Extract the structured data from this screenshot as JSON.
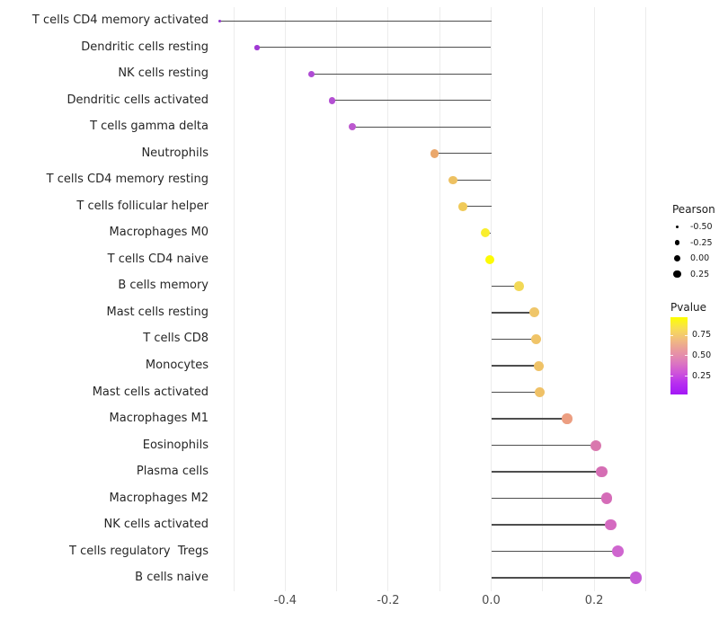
{
  "chart_data": {
    "type": "scatter",
    "subtype": "lollipop",
    "title": "",
    "xlabel": "",
    "ylabel": "",
    "xlim": [
      -0.57,
      0.33
    ],
    "grid": true,
    "grid_values": [
      -0.5,
      -0.4,
      -0.3,
      -0.2,
      -0.1,
      0.0,
      0.1,
      0.2,
      0.3
    ],
    "x_ticks": [
      {
        "label": "-0.4",
        "value": -0.4
      },
      {
        "label": "-0.2",
        "value": -0.2
      },
      {
        "label": "0.0",
        "value": 0.0
      },
      {
        "label": "0.2",
        "value": 0.2
      }
    ],
    "rows": [
      {
        "label": "T cells CD4 memory activated",
        "pearson": -0.527,
        "dot_color": "#9232cd",
        "dot_size": 3
      },
      {
        "label": "Dendritic cells resting",
        "pearson": -0.455,
        "dot_color": "#a039d4",
        "dot_size": 5.5
      },
      {
        "label": "NK cells resting",
        "pearson": -0.35,
        "dot_color": "#af4bd4",
        "dot_size": 7
      },
      {
        "label": "Dendritic cells activated",
        "pearson": -0.309,
        "dot_color": "#b450d3",
        "dot_size": 7.5
      },
      {
        "label": "T cells gamma delta",
        "pearson": -0.269,
        "dot_color": "#bc58cf",
        "dot_size": 8
      },
      {
        "label": "Neutrophils",
        "pearson": -0.11,
        "dot_color": "#eaa76b",
        "dot_size": 9.5
      },
      {
        "label": "T cells CD4 memory resting",
        "pearson": -0.074,
        "dot_color": "#edc162",
        "dot_size": 9.5
      },
      {
        "label": "T cells follicular helper",
        "pearson": -0.055,
        "dot_color": "#f0ca58",
        "dot_size": 9.5
      },
      {
        "label": "Macrophages M0",
        "pearson": -0.012,
        "dot_color": "#f9ee2e",
        "dot_size": 10
      },
      {
        "label": "T cells CD4 naive",
        "pearson": -0.002,
        "dot_color": "#fdfb05",
        "dot_size": 10
      },
      {
        "label": "B cells memory",
        "pearson": 0.054,
        "dot_color": "#f2d856",
        "dot_size": 10.5
      },
      {
        "label": "Mast cells resting",
        "pearson": 0.084,
        "dot_color": "#efc66a",
        "dot_size": 11
      },
      {
        "label": "T cells CD8",
        "pearson": 0.088,
        "dot_color": "#f0c468",
        "dot_size": 11
      },
      {
        "label": "Monocytes",
        "pearson": 0.093,
        "dot_color": "#efc267",
        "dot_size": 11
      },
      {
        "label": "Mast cells activated",
        "pearson": 0.095,
        "dot_color": "#efc167",
        "dot_size": 11
      },
      {
        "label": "Macrophages M1",
        "pearson": 0.147,
        "dot_color": "#ec9e81",
        "dot_size": 11.5
      },
      {
        "label": "Eosinophils",
        "pearson": 0.203,
        "dot_color": "#d978ae",
        "dot_size": 12
      },
      {
        "label": "Plasma cells",
        "pearson": 0.215,
        "dot_color": "#d56eb4",
        "dot_size": 12.5
      },
      {
        "label": "Macrophages M2",
        "pearson": 0.224,
        "dot_color": "#d56cb8",
        "dot_size": 12.5
      },
      {
        "label": "NK cells activated",
        "pearson": 0.232,
        "dot_color": "#d46ac0",
        "dot_size": 12.5
      },
      {
        "label": "T cells regulatory  Tregs",
        "pearson": 0.246,
        "dot_color": "#cf66cf",
        "dot_size": 13
      },
      {
        "label": "B cells naive",
        "pearson": 0.281,
        "dot_color": "#c55cd6",
        "dot_size": 13.5
      }
    ],
    "legend_size": {
      "title": "Pearson",
      "entries": [
        {
          "label": "-0.50",
          "dot_size": 3
        },
        {
          "label": "-0.25",
          "dot_size": 5.5
        },
        {
          "label": "0.00",
          "dot_size": 7.3
        },
        {
          "label": "0.25",
          "dot_size": 8.3
        }
      ]
    },
    "legend_color": {
      "title": "Pvalue",
      "tick_labels": [
        "0.75",
        "0.50",
        "0.25"
      ],
      "gradient_top_to_bottom": [
        "#fdff00",
        "#f8df52",
        "#f1bd7e",
        "#e99a9e",
        "#de7cbc",
        "#cf56d8",
        "#b72ef0",
        "#a318f6"
      ]
    },
    "legend_position": "right"
  },
  "colors": {
    "background": "#ffffff",
    "gridline": "#ececec",
    "stick": "#4e4e4e",
    "row_label_text": "#262626",
    "axis_tick_text": "#4d4d4d",
    "legend_text": "#1a1a1a",
    "legend_dot": "#000000"
  }
}
